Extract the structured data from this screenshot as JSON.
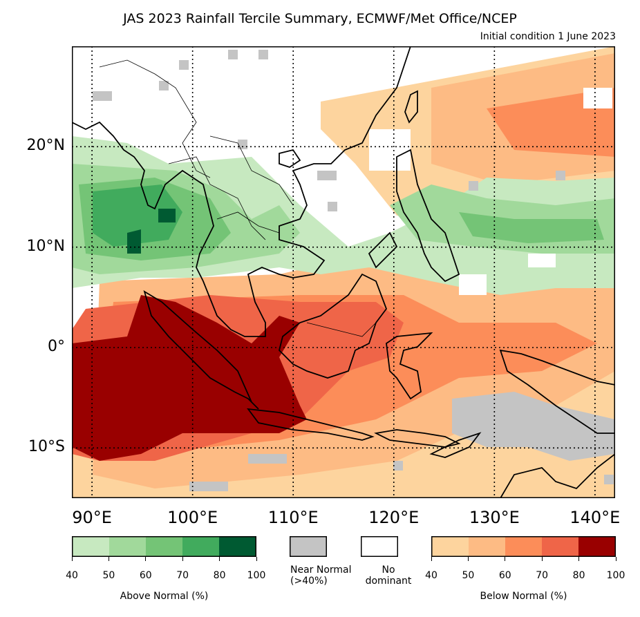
{
  "title": "JAS 2023 Rainfall Tercile Summary, ECMWF/Met Office/NCEP",
  "subtitle": "Initial condition 1 June 2023",
  "map": {
    "lon_range": [
      88,
      142
    ],
    "lat_range": [
      -15,
      30
    ],
    "lat_labels": [
      "20°N",
      "10°N",
      "0°",
      "10°S"
    ],
    "lat_values": [
      20,
      10,
      0,
      -10
    ],
    "lon_labels": [
      "90°E",
      "100°E",
      "110°E",
      "120°E",
      "130°E",
      "140°E"
    ],
    "lon_values": [
      90,
      100,
      110,
      120,
      130,
      140
    ],
    "gridlines": "dotted"
  },
  "legend": {
    "above": {
      "caption": "Above Normal (%)",
      "ticks": [
        "40",
        "50",
        "60",
        "70",
        "80",
        "100"
      ],
      "colors": [
        "#c7e9c0",
        "#a1d99b",
        "#74c476",
        "#41ab5d",
        "#005a32"
      ]
    },
    "near": {
      "caption_line1": "Near Normal",
      "caption_line2": "(>40%)",
      "color": "#c4c4c4"
    },
    "none": {
      "caption_line1": "No",
      "caption_line2": "dominant",
      "color": "#ffffff"
    },
    "below": {
      "caption": "Below Normal (%)",
      "ticks": [
        "40",
        "50",
        "60",
        "70",
        "80",
        "100"
      ],
      "colors": [
        "#fdd49e",
        "#fdbb84",
        "#fc8d59",
        "#ef6548",
        "#990000"
      ]
    }
  }
}
